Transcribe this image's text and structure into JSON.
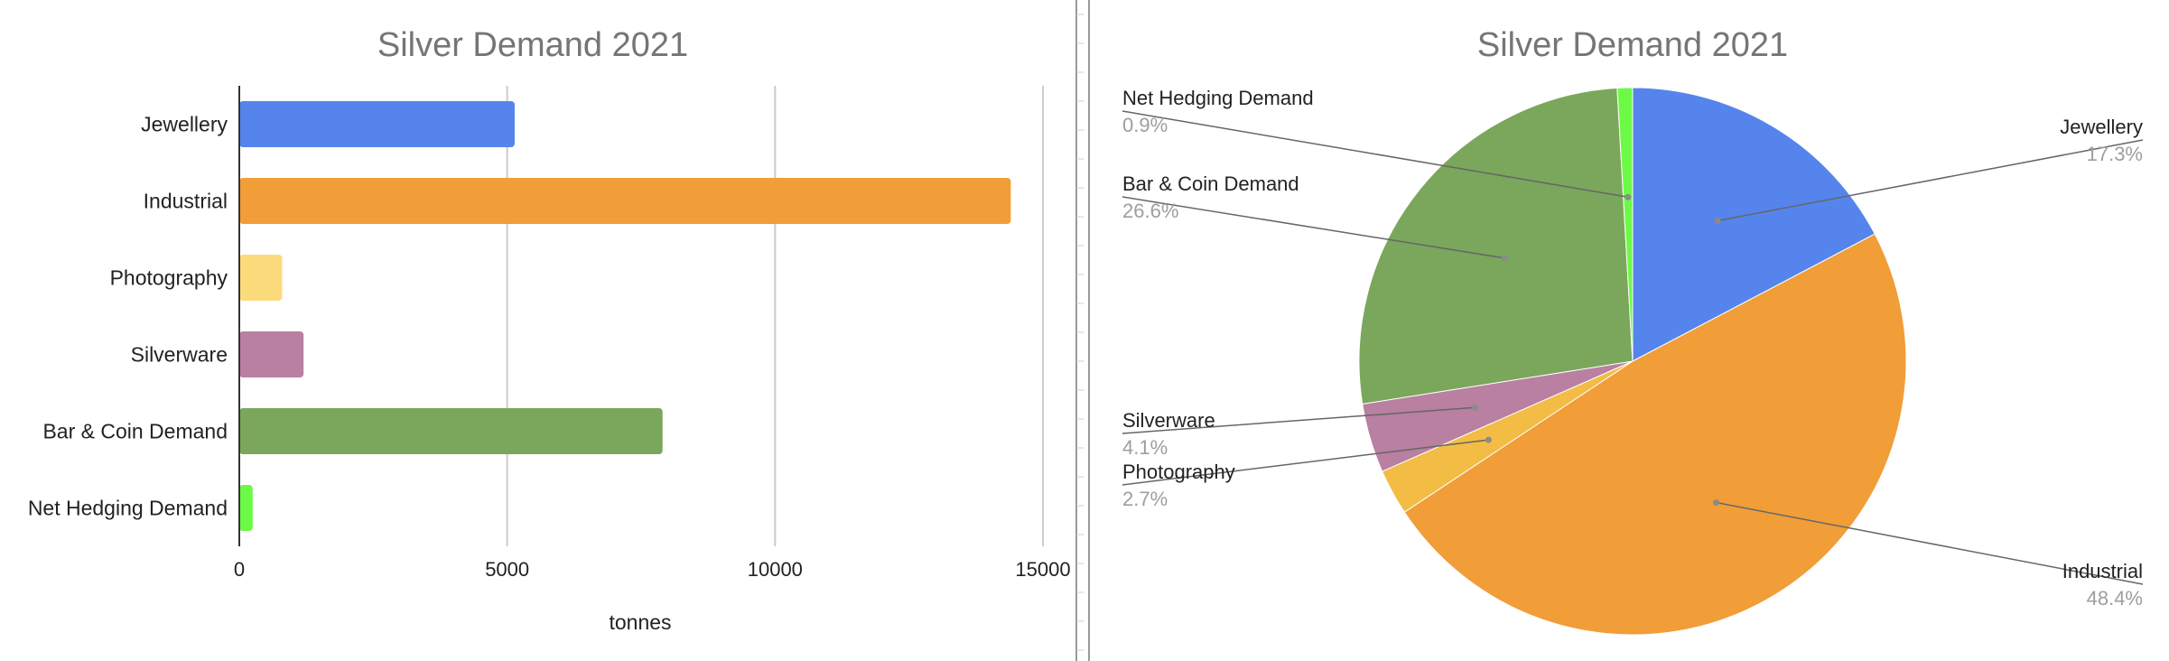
{
  "chart_data": [
    {
      "type": "bar",
      "orientation": "horizontal",
      "title": "Silver Demand 2021",
      "xlabel": "tonnes",
      "ylabel": "",
      "xlim": [
        0,
        15000
      ],
      "xticks": [
        "0",
        "5000",
        "10000",
        "15000"
      ],
      "grid": true,
      "categories": [
        "Jewellery",
        "Industrial",
        "Photography",
        "Silverware",
        "Bar & Coin Demand",
        "Net Hedging Demand"
      ],
      "values": [
        5140,
        14400,
        800,
        1200,
        7900,
        250
      ],
      "colors": [
        "#5585ec",
        "#f19d38",
        "#fcdb7c",
        "#b980a1",
        "#7aa75b",
        "#6dfa47"
      ]
    },
    {
      "type": "pie",
      "title": "Silver Demand 2021",
      "labels": [
        "Jewellery",
        "Industrial",
        "Photography",
        "Silverware",
        "Bar & Coin Demand",
        "Net Hedging Demand"
      ],
      "percent_labels": [
        "17.3%",
        "48.4%",
        "2.7%",
        "4.1%",
        "26.6%",
        "0.9%"
      ],
      "values": [
        17.3,
        48.4,
        2.7,
        4.1,
        26.6,
        0.9
      ],
      "colors": [
        "#5585ec",
        "#f19d38",
        "#f2bc45",
        "#b980a1",
        "#7aa75b",
        "#6dfa47"
      ]
    }
  ],
  "ui": {
    "text_color": "#222222",
    "title_color": "#757575",
    "percent_color": "#9e9e9e",
    "grid_color": "#cccccc",
    "axis_color": "#333333",
    "divider_color": "#9a9a9a"
  }
}
